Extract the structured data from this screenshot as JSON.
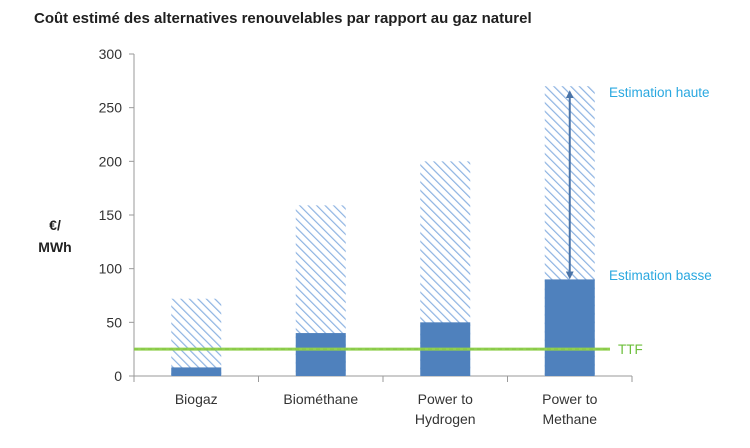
{
  "chart_data": {
    "type": "bar",
    "title": "Coût estimé des alternatives renouvelables par rapport au gaz naturel",
    "ylabel": [
      "€/",
      "MWh"
    ],
    "ylim": [
      0,
      300
    ],
    "yticks": [
      0,
      50,
      100,
      150,
      200,
      250,
      300
    ],
    "categories": [
      [
        "Biogaz"
      ],
      [
        "Biométhane"
      ],
      [
        "Power to",
        "Hydrogen"
      ],
      [
        "Power to",
        "Methane"
      ]
    ],
    "series": [
      {
        "name": "Estimation basse",
        "values": [
          8,
          40,
          50,
          90
        ]
      },
      {
        "name": "Estimation haute",
        "values": [
          72,
          159,
          200,
          270
        ]
      }
    ],
    "reference_line": {
      "label": "TTF",
      "value": 25
    },
    "annotations": {
      "high_label": "Estimation haute",
      "low_label": "Estimation basse"
    },
    "colors": {
      "solid": "#4f81bd",
      "hatch": "#8db3e2",
      "ttf_line": "#92d050",
      "annotation_text": "#2aa8e0",
      "ttf_text": "#6cbf3a",
      "arrow": "#4a74a8",
      "axis": "#9a9a9a"
    },
    "grid": false,
    "legend": "none"
  }
}
